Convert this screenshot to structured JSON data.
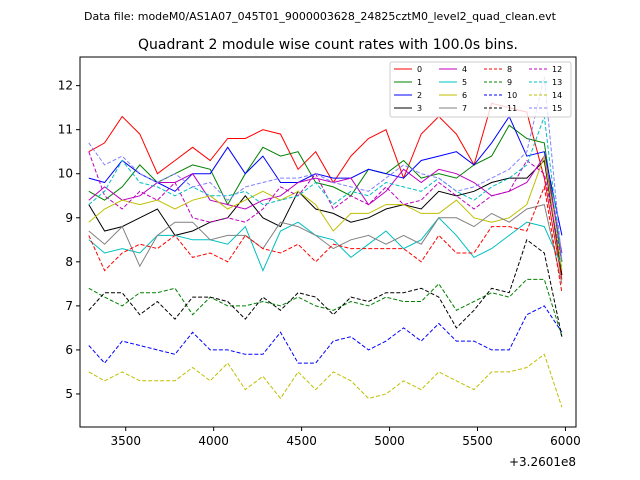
{
  "header": {
    "data_file": "Data file: modeM0/AS1A07_045T01_9000003628_24825cztM0_level2_quad_clean.evt"
  },
  "chart_data": {
    "type": "line",
    "title": "Quadrant 2 module wise count rates with 100.0s bins.",
    "xlabel": "",
    "ylabel": "",
    "x_offset_label": "+3.2601e8",
    "x_offset": 326010000,
    "xlim": [
      3240,
      6060
    ],
    "ylim": [
      4.25,
      12.65
    ],
    "x_ticks": [
      3500,
      4000,
      4500,
      5000,
      5500,
      6000
    ],
    "y_ticks": [
      5,
      6,
      7,
      8,
      9,
      10,
      11,
      12
    ],
    "legend_position": "top-right",
    "legend_columns": 4,
    "x": [
      3290,
      3380,
      3480,
      3580,
      3680,
      3780,
      3880,
      3980,
      4080,
      4180,
      4280,
      4380,
      4480,
      4580,
      4680,
      4780,
      4880,
      4980,
      5080,
      5180,
      5280,
      5380,
      5480,
      5580,
      5680,
      5780,
      5880,
      5980
    ],
    "series": [
      {
        "name": "0",
        "color": "#ff0000",
        "dash": "solid",
        "values": [
          10.5,
          10.7,
          11.3,
          10.9,
          10.0,
          10.3,
          10.6,
          10.3,
          10.8,
          10.8,
          11.0,
          10.9,
          10.1,
          10.5,
          9.8,
          10.4,
          10.8,
          11.0,
          9.9,
          10.9,
          11.3,
          10.9,
          10.2,
          11.6,
          11.5,
          11.4,
          9.9,
          7.6
        ]
      },
      {
        "name": "1",
        "color": "#008000",
        "dash": "solid",
        "values": [
          9.6,
          9.4,
          9.7,
          10.2,
          9.8,
          10.0,
          10.2,
          10.1,
          9.3,
          10.0,
          10.6,
          10.4,
          10.5,
          9.8,
          9.7,
          9.5,
          10.1,
          10.0,
          10.3,
          9.9,
          10.0,
          9.9,
          10.2,
          10.4,
          11.1,
          10.8,
          10.7,
          8.0
        ]
      },
      {
        "name": "2",
        "color": "#0000ff",
        "dash": "solid",
        "values": [
          9.9,
          9.8,
          10.3,
          10.0,
          9.8,
          9.6,
          10.0,
          10.0,
          10.6,
          10.0,
          10.4,
          9.8,
          9.8,
          10.0,
          9.9,
          9.9,
          10.1,
          10.0,
          9.9,
          10.3,
          10.4,
          10.5,
          10.2,
          10.7,
          11.3,
          10.4,
          10.5,
          8.6
        ]
      },
      {
        "name": "3",
        "color": "#000000",
        "dash": "solid",
        "values": [
          9.3,
          8.7,
          8.8,
          9.0,
          9.2,
          8.6,
          8.7,
          8.9,
          9.0,
          9.5,
          9.0,
          8.8,
          9.6,
          9.2,
          9.1,
          8.9,
          9.0,
          9.2,
          9.3,
          9.2,
          9.6,
          9.5,
          9.6,
          9.8,
          9.9,
          9.9,
          10.3,
          7.7
        ]
      },
      {
        "name": "4",
        "color": "#bf00bf",
        "dash": "solid",
        "values": [
          9.4,
          9.7,
          9.4,
          9.5,
          9.8,
          9.8,
          10.0,
          9.4,
          9.3,
          9.2,
          9.4,
          9.5,
          9.8,
          9.9,
          9.8,
          9.9,
          9.3,
          9.6,
          10.1,
          9.8,
          10.1,
          10.0,
          9.8,
          9.5,
          9.6,
          9.8,
          10.4,
          8.2
        ]
      },
      {
        "name": "5",
        "color": "#00bfbf",
        "dash": "solid",
        "values": [
          8.5,
          8.2,
          8.3,
          8.2,
          8.6,
          8.6,
          8.5,
          8.5,
          8.4,
          8.8,
          7.8,
          8.7,
          8.9,
          8.6,
          8.5,
          8.1,
          8.4,
          8.7,
          8.3,
          8.5,
          9.0,
          8.6,
          8.1,
          8.3,
          8.6,
          8.9,
          8.8,
          7.9
        ]
      },
      {
        "name": "6",
        "color": "#bfbf00",
        "dash": "solid",
        "values": [
          8.9,
          9.2,
          9.4,
          9.3,
          9.4,
          9.2,
          9.4,
          9.5,
          9.2,
          9.4,
          9.6,
          9.4,
          9.6,
          9.3,
          8.7,
          9.1,
          9.1,
          9.3,
          9.3,
          9.1,
          9.1,
          9.4,
          9.0,
          8.9,
          9.0,
          9.3,
          10.4,
          7.8
        ]
      },
      {
        "name": "7",
        "color": "#808080",
        "dash": "solid",
        "values": [
          8.7,
          8.4,
          8.8,
          7.9,
          8.6,
          8.9,
          8.9,
          8.5,
          8.6,
          8.6,
          8.3,
          8.9,
          8.8,
          8.6,
          8.3,
          8.5,
          8.6,
          8.4,
          8.6,
          8.4,
          9.0,
          9.0,
          8.8,
          9.1,
          8.9,
          9.2,
          9.3,
          7.5
        ]
      },
      {
        "name": "8",
        "color": "#ff0000",
        "dash": "dashed",
        "values": [
          8.6,
          7.8,
          8.2,
          8.4,
          8.3,
          8.6,
          8.1,
          8.2,
          8.0,
          8.6,
          8.3,
          8.2,
          8.4,
          8.0,
          8.4,
          8.3,
          8.3,
          8.3,
          8.3,
          8.0,
          8.6,
          8.2,
          8.2,
          8.8,
          8.8,
          8.7,
          9.7,
          7.3
        ]
      },
      {
        "name": "9",
        "color": "#008000",
        "dash": "dashed",
        "values": [
          7.4,
          7.2,
          7.0,
          7.3,
          7.3,
          7.4,
          6.8,
          7.2,
          7.0,
          7.0,
          7.1,
          7.0,
          7.2,
          7.0,
          6.9,
          7.1,
          7.0,
          7.2,
          7.1,
          7.1,
          7.5,
          6.9,
          7.1,
          7.3,
          7.2,
          7.6,
          7.6,
          6.3
        ]
      },
      {
        "name": "10",
        "color": "#0000ff",
        "dash": "dashed",
        "values": [
          6.1,
          5.7,
          6.2,
          6.1,
          6.0,
          5.9,
          6.4,
          6.0,
          6.0,
          5.9,
          5.9,
          6.4,
          5.7,
          5.7,
          6.2,
          6.3,
          6.0,
          6.2,
          6.5,
          6.2,
          6.6,
          6.2,
          6.2,
          6.0,
          6.0,
          6.8,
          7.0,
          6.4
        ]
      },
      {
        "name": "11",
        "color": "#000000",
        "dash": "dashed",
        "values": [
          6.9,
          7.3,
          7.3,
          6.8,
          7.1,
          6.7,
          7.2,
          7.2,
          7.1,
          6.7,
          7.2,
          6.9,
          7.3,
          7.2,
          6.8,
          7.2,
          7.1,
          7.3,
          7.3,
          7.4,
          7.2,
          6.5,
          6.9,
          7.4,
          7.3,
          8.5,
          8.2,
          6.3
        ]
      },
      {
        "name": "12",
        "color": "#bf00bf",
        "dash": "dashed",
        "values": [
          10.5,
          9.5,
          9.2,
          9.6,
          9.4,
          9.8,
          9.0,
          8.9,
          9.0,
          8.9,
          9.2,
          9.7,
          9.5,
          10.0,
          9.2,
          9.5,
          9.3,
          9.7,
          9.3,
          9.4,
          9.8,
          9.5,
          9.2,
          9.5,
          9.6,
          10.3,
          10.0,
          8.0
        ]
      },
      {
        "name": "13",
        "color": "#00bfbf",
        "dash": "dashed",
        "values": [
          9.3,
          9.6,
          10.3,
          9.8,
          9.7,
          9.5,
          9.7,
          9.5,
          9.5,
          9.6,
          9.3,
          9.4,
          9.5,
          9.8,
          9.3,
          9.6,
          9.5,
          9.8,
          9.7,
          9.6,
          9.9,
          9.6,
          9.4,
          9.7,
          9.9,
          10.2,
          11.3,
          8.0
        ]
      },
      {
        "name": "14",
        "color": "#bfbf00",
        "dash": "dashed",
        "values": [
          5.5,
          5.3,
          5.5,
          5.3,
          5.3,
          5.3,
          5.6,
          5.3,
          5.7,
          5.1,
          5.4,
          4.9,
          5.5,
          5.1,
          5.5,
          5.3,
          4.9,
          5.0,
          5.3,
          5.1,
          5.5,
          5.3,
          5.1,
          5.5,
          5.5,
          5.6,
          5.9,
          4.7
        ]
      },
      {
        "name": "15",
        "color": "#8080ff",
        "dash": "dashed",
        "values": [
          10.7,
          10.2,
          10.4,
          10.0,
          9.8,
          10.0,
          9.7,
          9.8,
          9.4,
          9.7,
          9.8,
          9.9,
          9.9,
          10.0,
          9.8,
          9.7,
          9.6,
          9.9,
          10.2,
          10.0,
          9.9,
          9.6,
          9.7,
          9.9,
          10.1,
          10.5,
          12.2,
          8.0
        ]
      }
    ]
  }
}
